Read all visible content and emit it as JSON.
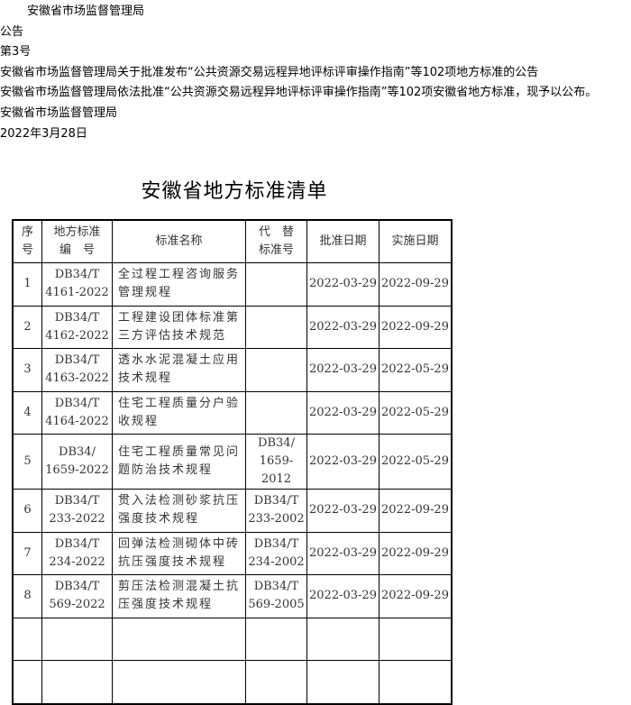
{
  "notice": {
    "issuer": "安徽省市场监督管理局",
    "type": "公告",
    "number": "第3号",
    "headline": "安徽省市场监督管理局关于批准发布“公共资源交易远程异地评标评审操作指南”等102项地方标准的公告",
    "body": "安徽省市场监督管理局依法批准“公共资源交易远程异地评标评审操作指南”等102项安徽省地方标准，现予以公布。",
    "signature": "安徽省市场监督管理局",
    "date": "2022年3月28日"
  },
  "list_title": "安徽省地方标准清单",
  "table": {
    "headers": {
      "seq": [
        "序",
        "号"
      ],
      "code": [
        "地方标准",
        "编　号"
      ],
      "name": "标准名称",
      "replaced": [
        "代　替",
        "标准号"
      ],
      "approved": "批准日期",
      "effective": "实施日期"
    },
    "rows": [
      {
        "seq": "1",
        "code": [
          "DB34/T",
          "4161-2022"
        ],
        "name": "全过程工程咨询服务管理规程",
        "replaced": [
          "",
          ""
        ],
        "approved": "2022-03-29",
        "effective": "2022-09-29"
      },
      {
        "seq": "2",
        "code": [
          "DB34/T",
          "4162-2022"
        ],
        "name": "工程建设团体标准第三方评估技术规范",
        "replaced": [
          "",
          ""
        ],
        "approved": "2022-03-29",
        "effective": "2022-09-29"
      },
      {
        "seq": "3",
        "code": [
          "DB34/T",
          "4163-2022"
        ],
        "name": "透水水泥混凝土应用技术规程",
        "replaced": [
          "",
          ""
        ],
        "approved": "2022-03-29",
        "effective": "2022-05-29"
      },
      {
        "seq": "4",
        "code": [
          "DB34/T",
          "4164-2022"
        ],
        "name": "住宅工程质量分户验收规程",
        "replaced": [
          "",
          ""
        ],
        "approved": "2022-03-29",
        "effective": "2022-05-29"
      },
      {
        "seq": "5",
        "code": [
          "DB34/",
          "1659-2022"
        ],
        "name": "住宅工程质量常见问题防治技术规程",
        "replaced": [
          "DB34/",
          "1659-2012"
        ],
        "approved": "2022-03-29",
        "effective": "2022-05-29"
      },
      {
        "seq": "6",
        "code": [
          "DB34/T",
          "233-2022"
        ],
        "name": "贯入法检测砂浆抗压强度技术规程",
        "replaced": [
          "DB34/T",
          "233-2002"
        ],
        "approved": "2022-03-29",
        "effective": "2022-09-29"
      },
      {
        "seq": "7",
        "code": [
          "DB34/T",
          "234-2022"
        ],
        "name": "回弹法检测砌体中砖抗压强度技术规程",
        "replaced": [
          "DB34/T",
          "234-2002"
        ],
        "approved": "2022-03-29",
        "effective": "2022-09-29"
      },
      {
        "seq": "8",
        "code": [
          "DB34/T",
          "569-2022"
        ],
        "name": "剪压法检测混凝土抗压强度技术规程",
        "replaced": [
          "DB34/T",
          "569-2005"
        ],
        "approved": "2022-03-29",
        "effective": "2022-09-29"
      }
    ]
  }
}
